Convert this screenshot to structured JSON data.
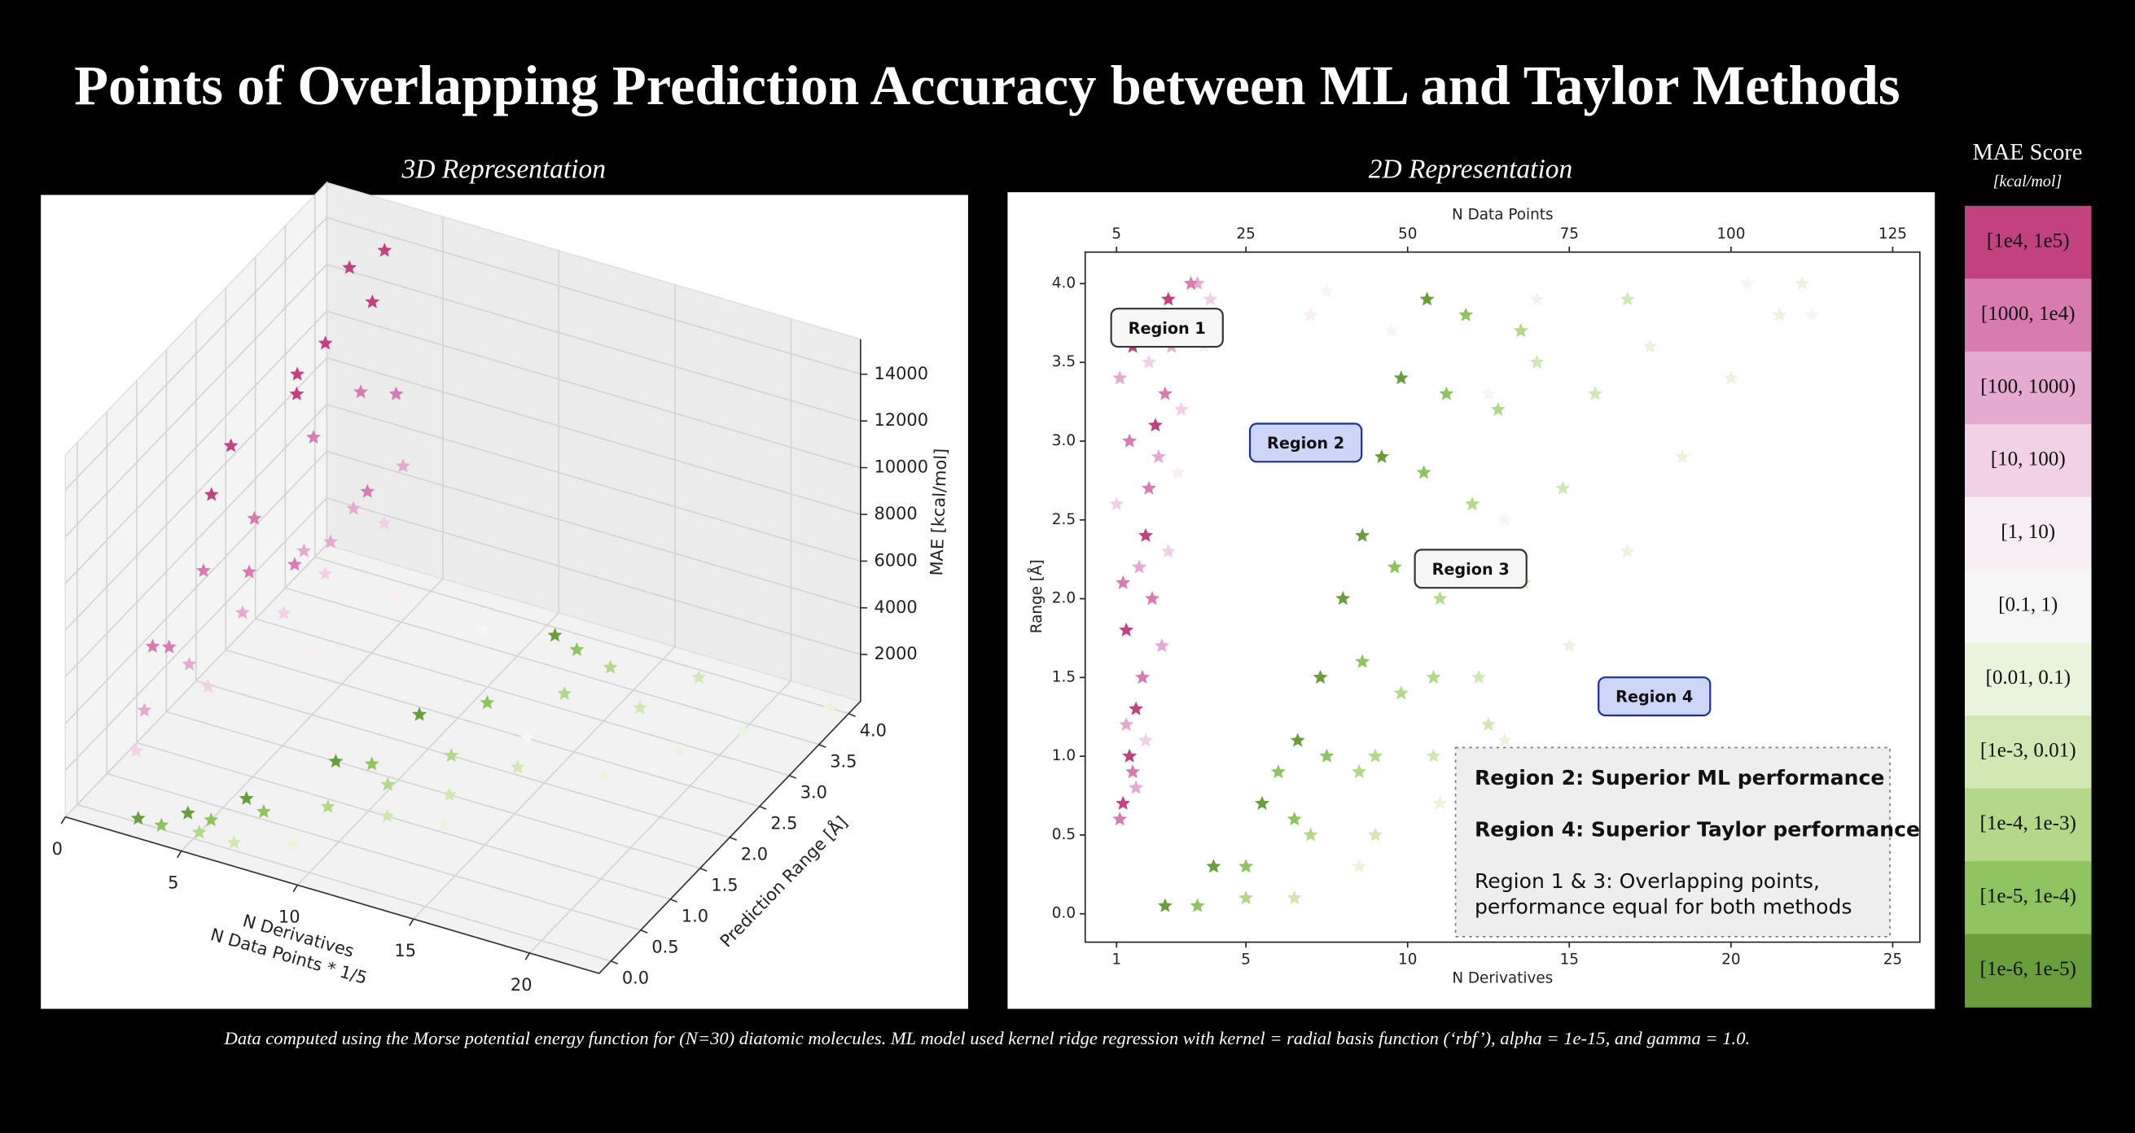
{
  "title": "Points of Overlapping Prediction Accuracy between ML and Taylor  Methods",
  "footnote": "Data computed using the Morse potential energy function for (N=30) diatomic molecules. ML model used kernel ridge regression with kernel = radial basis function (‘rbf’),  alpha = 1e-15, and gamma = 1.0.",
  "legend": {
    "title": "MAE Score",
    "unit": "[kcal/mol]"
  },
  "note": {
    "lines": [
      "Region 2: Superior ML performance",
      "Region 4: Superior Taylor performance",
      "Region 1 & 3: Overlapping points,",
      "performance equal for both methods"
    ]
  },
  "chart_data": [
    {
      "type": "scatter3d",
      "subtitle": "3D Representation",
      "x_label": [
        "N Derivatives",
        "N Data Points * 1/5"
      ],
      "y_label": "Prediction Range [Å]",
      "z_label": "MAE [kcal/mol]",
      "xlim": [
        0,
        23
      ],
      "ylim": [
        -0.2,
        4.2
      ],
      "zlim": [
        0,
        15500
      ],
      "xticks": [
        0,
        5,
        10,
        15,
        20
      ],
      "yticks": [
        {
          "value": 0,
          "label": "0.0"
        },
        0.5,
        {
          "value": 1,
          "label": "1.0"
        },
        1.5,
        {
          "value": 2,
          "label": "2.0"
        },
        2.5,
        {
          "value": 3,
          "label": "3.0"
        },
        3.5,
        {
          "value": 4,
          "label": "4.0"
        }
      ],
      "zticks": [
        2000,
        4000,
        6000,
        8000,
        10000,
        12000,
        14000
      ],
      "series": [
        {
          "color": "#c2427f",
          "x": [
            1.5,
            2.0,
            2.5,
            3.0,
            1.8,
            2.8,
            3.5,
            2.2
          ],
          "y": [
            2.0,
            3.8,
            3.2,
            4.0,
            3.0,
            2.6,
            3.6,
            1.4
          ],
          "z": [
            10500,
            13500,
            12000,
            14000,
            11000,
            11500,
            13000,
            10200
          ]
        },
        {
          "color": "#d77bb0",
          "x": [
            1.2,
            1.6,
            2.0,
            2.5,
            3.0,
            3.5,
            1.4,
            2.2,
            2.8,
            3.8
          ],
          "y": [
            0.8,
            1.5,
            2.2,
            3.0,
            3.6,
            4.0,
            1.0,
            2.8,
            1.8,
            3.4
          ],
          "z": [
            5000,
            6500,
            7000,
            8500,
            9000,
            8000,
            4500,
            3500,
            6000,
            5500
          ]
        },
        {
          "color": "#e6a9cf",
          "x": [
            1.1,
            1.5,
            2.0,
            2.6,
            3.2,
            3.8,
            1.7
          ],
          "y": [
            0.7,
            1.3,
            2.0,
            2.8,
            3.4,
            4.0,
            3.6
          ],
          "z": [
            2500,
            3000,
            3500,
            4200,
            4600,
            5000,
            2200
          ]
        },
        {
          "color": "#f1d1e6",
          "x": [
            1.0,
            1.8,
            2.5,
            3.5,
            3.0
          ],
          "y": [
            0.6,
            1.5,
            2.5,
            3.8,
            3.0
          ],
          "z": [
            1000,
            1600,
            2300,
            3000,
            2800
          ]
        },
        {
          "color": "#f8eef3",
          "x": [
            3.0,
            4.0
          ],
          "y": [
            2.8,
            3.8
          ],
          "z": [
            60,
            40
          ]
        },
        {
          "color": "#f6f6f6",
          "x": [
            8,
            13
          ],
          "y": [
            3.7,
            2.5
          ],
          "z": [
            0,
            0
          ]
        },
        {
          "color": "#eaf3dc",
          "x": [
            8.5,
            13,
            16.8,
            20,
            22.2,
            18.5
          ],
          "y": [
            0.3,
            1.1,
            2.3,
            3.4,
            4.0,
            2.9
          ],
          "z": [
            0,
            0,
            0,
            0,
            0,
            0
          ]
        },
        {
          "color": "#d2e8b4",
          "x": [
            6.5,
            10.8,
            13.6,
            15.8,
            16.8,
            12.2
          ],
          "y": [
            0.1,
            1.0,
            2.1,
            3.3,
            3.9,
            1.5
          ],
          "z": [
            0,
            0,
            0,
            0,
            0,
            0
          ]
        },
        {
          "color": "#b3d889",
          "x": [
            5,
            8.5,
            11,
            12.8,
            13.5,
            9.8
          ],
          "y": [
            0.1,
            0.9,
            2.0,
            3.2,
            3.7,
            1.4
          ],
          "z": [
            0,
            0,
            0,
            0,
            0,
            0
          ]
        },
        {
          "color": "#8fc35f",
          "x": [
            3.5,
            6.5,
            8.6,
            10.5,
            11.8,
            5
          ],
          "y": [
            0.05,
            0.6,
            1.6,
            2.8,
            3.8,
            0.3
          ],
          "z": [
            0,
            0,
            0,
            0,
            0,
            0
          ]
        },
        {
          "color": "#6a9e3d",
          "x": [
            2.5,
            5.5,
            7.3,
            8.6,
            10.6,
            4
          ],
          "y": [
            0.05,
            0.7,
            1.5,
            2.4,
            3.9,
            0.3
          ],
          "z": [
            0,
            0,
            0,
            0,
            0,
            0
          ]
        }
      ]
    },
    {
      "type": "scatter",
      "subtitle": "2D Representation",
      "x_label": "N Derivatives",
      "x2_label": "N Data Points",
      "y_label": "Range [Å]",
      "xlim": [
        0.03,
        25.84
      ],
      "x2lim": [
        0.15,
        129.2
      ],
      "ylim": [
        -0.18,
        4.2
      ],
      "xticks": [
        1,
        5,
        10,
        15,
        20,
        25
      ],
      "x2ticks": [
        5,
        25,
        50,
        75,
        100,
        125
      ],
      "yticks": [
        {
          "value": 0,
          "label": "0.0"
        },
        0.5,
        {
          "value": 1,
          "label": "1.0"
        },
        1.5,
        {
          "value": 2,
          "label": "2.0"
        },
        2.5,
        {
          "value": 3,
          "label": "3.0"
        },
        3.5,
        {
          "value": 4,
          "label": "4.0"
        }
      ],
      "series": [
        {
          "name": "[1e4, 1e5)",
          "color": "#c2427f",
          "x": [
            1.2,
            1.4,
            1.6,
            1.3,
            1.9,
            2.2,
            1.5,
            2.6
          ],
          "y": [
            0.7,
            1.0,
            1.3,
            1.8,
            2.4,
            3.1,
            3.6,
            3.9
          ]
        },
        {
          "name": "[1000, 1e4)",
          "color": "#d77bb0",
          "x": [
            1.1,
            1.5,
            1.8,
            1.2,
            2.0,
            2.5,
            1.4,
            2.9,
            3.3,
            2.1
          ],
          "y": [
            0.6,
            0.9,
            1.5,
            2.1,
            2.7,
            3.3,
            3.0,
            3.8,
            4.0,
            2.0
          ]
        },
        {
          "name": "[100, 1000)",
          "color": "#e6a9cf",
          "x": [
            1.3,
            1.7,
            2.3,
            1.1,
            2.7,
            3.5,
            1.6,
            2.4
          ],
          "y": [
            1.2,
            2.2,
            2.9,
            3.4,
            3.6,
            4.0,
            0.8,
            1.7
          ]
        },
        {
          "name": "[10, 100)",
          "color": "#f1d1e6",
          "x": [
            1.0,
            2.0,
            3.0,
            3.9,
            2.6,
            1.9
          ],
          "y": [
            2.6,
            3.5,
            3.2,
            3.9,
            2.3,
            1.1
          ]
        },
        {
          "name": "[1, 10)",
          "color": "#f8eef3",
          "x": [
            4.1,
            3.7,
            7.0,
            14.0,
            2.9
          ],
          "y": [
            3.8,
            3.6,
            3.8,
            3.9,
            2.8
          ]
        },
        {
          "name": "[0.1, 1)",
          "color": "#f6f6f6",
          "x": [
            7.5,
            9.5,
            13.0,
            20.5,
            22.5,
            12.5
          ],
          "y": [
            3.95,
            3.7,
            2.5,
            4.0,
            3.8,
            3.3
          ]
        },
        {
          "name": "[0.01, 0.1)",
          "color": "#eaf3dc",
          "x": [
            8.5,
            11.0,
            13.0,
            15.0,
            16.8,
            18.5,
            20.0,
            21.5,
            22.2,
            17.5
          ],
          "y": [
            0.3,
            0.7,
            1.1,
            1.7,
            2.3,
            2.9,
            3.4,
            3.8,
            4.0,
            3.6
          ]
        },
        {
          "name": "[1e-3, 0.01)",
          "color": "#d2e8b4",
          "x": [
            6.5,
            9.0,
            10.8,
            12.2,
            13.6,
            14.8,
            15.8,
            16.8,
            12.5,
            14.0
          ],
          "y": [
            0.1,
            0.5,
            1.0,
            1.5,
            2.1,
            2.7,
            3.3,
            3.9,
            1.2,
            3.5
          ]
        },
        {
          "name": "[1e-4, 1e-3)",
          "color": "#b3d889",
          "x": [
            5.0,
            7.0,
            8.5,
            9.8,
            11.0,
            12.0,
            12.8,
            13.5,
            9.0,
            10.8
          ],
          "y": [
            0.1,
            0.5,
            0.9,
            1.4,
            2.0,
            2.6,
            3.2,
            3.7,
            1.0,
            1.5
          ]
        },
        {
          "name": "[1e-5, 1e-4)",
          "color": "#8fc35f",
          "x": [
            3.5,
            5.0,
            6.5,
            7.5,
            8.6,
            9.6,
            10.5,
            11.2,
            11.8,
            6.0
          ],
          "y": [
            0.05,
            0.3,
            0.6,
            1.0,
            1.6,
            2.2,
            2.8,
            3.3,
            3.8,
            0.9
          ]
        },
        {
          "name": "[1e-6, 1e-5)",
          "color": "#6a9e3d",
          "x": [
            2.5,
            4.0,
            5.5,
            6.6,
            7.3,
            8.0,
            8.6,
            9.2,
            9.8,
            10.6
          ],
          "y": [
            0.05,
            0.3,
            0.7,
            1.1,
            1.5,
            2.0,
            2.4,
            2.9,
            3.4,
            3.9
          ]
        }
      ],
      "annotations": [
        {
          "text": "Region 1",
          "x": 2.56,
          "y": 3.72,
          "style": "gray"
        },
        {
          "text": "Region 2",
          "x": 6.85,
          "y": 2.99,
          "style": "blue"
        },
        {
          "text": "Region 3",
          "x": 11.95,
          "y": 2.19,
          "style": "gray"
        },
        {
          "text": "Region 4",
          "x": 17.63,
          "y": 1.38,
          "style": "blue"
        }
      ]
    }
  ]
}
